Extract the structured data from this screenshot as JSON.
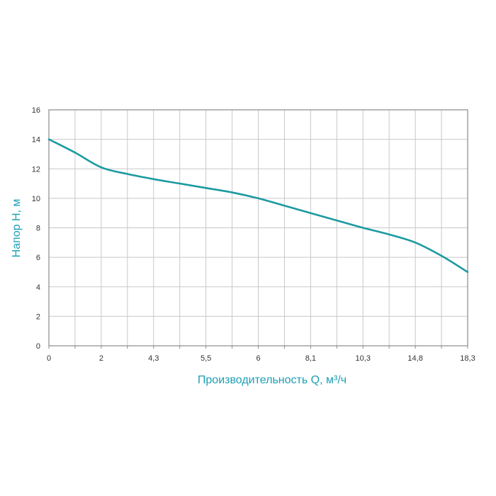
{
  "chart_data": {
    "type": "line",
    "xlabel": "Производительность Q, м³/ч",
    "ylabel": "Напор H, м",
    "x_tick_labels": [
      "0",
      "2",
      "4,3",
      "5,5",
      "6",
      "8,1",
      "10,3",
      "14,8",
      "18,3"
    ],
    "y_ticks": [
      0,
      2,
      4,
      6,
      8,
      10,
      12,
      14,
      16
    ],
    "ylim": [
      0,
      16
    ],
    "grid": true,
    "series": [
      {
        "x_label_index": [
          0,
          0.5,
          1,
          1.5,
          2,
          2.5,
          3,
          3.5,
          4,
          4.5,
          5,
          5.5,
          6,
          6.5,
          7,
          7.5,
          8
        ],
        "y": [
          14,
          13.1,
          12.1,
          11.65,
          11.3,
          11.0,
          10.7,
          10.4,
          10.0,
          9.5,
          9.0,
          8.5,
          8.0,
          7.55,
          7.0,
          6.1,
          5.0
        ]
      }
    ],
    "colors": {
      "line": "#1b9aa0",
      "axis_title": "#1a9fb5",
      "grid": "#c8c8c8",
      "frame": "#8a8a8a"
    }
  }
}
